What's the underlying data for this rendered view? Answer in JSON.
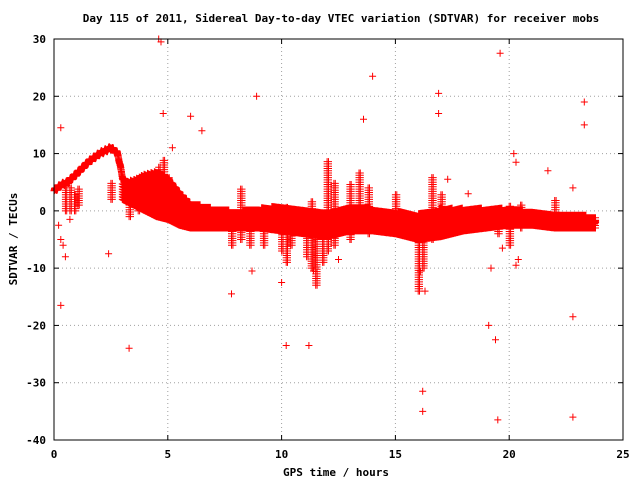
{
  "chart_data": {
    "type": "scatter",
    "title": "Day 115 of 2011, Sidereal Day-to-day VTEC variation (SDTVAR) for receiver mobs",
    "xlabel": "GPS time / hours",
    "ylabel": "SDTVAR / TECUs",
    "xlim": [
      0,
      25
    ],
    "ylim": [
      -40,
      30
    ],
    "xticks": [
      0,
      5,
      10,
      15,
      20,
      25
    ],
    "yticks": [
      -40,
      -30,
      -20,
      -10,
      0,
      10,
      20,
      30
    ],
    "xtick_labels": [
      "0",
      "5",
      "10",
      "15",
      "20",
      "25"
    ],
    "ytick_labels": [
      "-40",
      "-30",
      "-20",
      "-10",
      "0",
      "10",
      "20",
      "30"
    ],
    "grid": true,
    "marker": "+",
    "color": "#ff0000",
    "main_curve": {
      "x": [
        0.0,
        0.3,
        0.6,
        1.0,
        1.5,
        2.0,
        2.5,
        2.8,
        3.0,
        3.3,
        3.6,
        4.0,
        4.5,
        5.0,
        5.5,
        6.0,
        7.0,
        8.0,
        9.0,
        10.0,
        11.0,
        12.0,
        13.0,
        14.0,
        15.0,
        16.0,
        17.0,
        18.0,
        19.0,
        20.0,
        21.0,
        22.0,
        23.0,
        23.8
      ],
      "y": [
        3.5,
        4.5,
        5.0,
        6.5,
        8.5,
        10.0,
        11.0,
        10.0,
        6.0,
        3.0,
        3.5,
        4.0,
        3.5,
        2.0,
        0.0,
        -1.0,
        -1.5,
        -1.5,
        -1.0,
        -1.5,
        -2.0,
        -2.5,
        -1.5,
        -1.0,
        -1.5,
        -2.5,
        -2.0,
        -1.5,
        -1.5,
        -1.0,
        -1.0,
        -1.5,
        -1.5,
        -2.0
      ]
    },
    "band": {
      "x": [
        3.0,
        3.5,
        4.0,
        4.5,
        5.0,
        5.5,
        6.0,
        7.0,
        8.0,
        9.0,
        10.0,
        11.0,
        12.0,
        13.0,
        14.0,
        15.0,
        16.0,
        17.0,
        18.0,
        19.0,
        20.0,
        21.0,
        22.0,
        23.0,
        23.8
      ],
      "upper": [
        5.0,
        5.5,
        6.5,
        7.0,
        6.0,
        3.5,
        1.5,
        0.5,
        0.0,
        0.5,
        1.0,
        0.5,
        0.0,
        1.0,
        0.5,
        0.0,
        -0.5,
        0.5,
        0.5,
        0.5,
        0.5,
        0.0,
        -0.5,
        -0.5,
        -1.0
      ],
      "lower": [
        2.0,
        1.0,
        0.0,
        -1.0,
        -1.5,
        -2.5,
        -3.0,
        -3.0,
        -3.0,
        -3.0,
        -3.5,
        -4.0,
        -4.5,
        -3.5,
        -3.5,
        -4.0,
        -5.0,
        -4.5,
        -3.5,
        -3.0,
        -2.5,
        -2.5,
        -3.0,
        -3.0,
        -3.0
      ]
    },
    "spikes": [
      {
        "x": 0.5,
        "y_low": 0,
        "y_high": 5
      },
      {
        "x": 0.7,
        "y_low": 0,
        "y_high": 4
      },
      {
        "x": 0.9,
        "y_low": 0,
        "y_high": 3
      },
      {
        "x": 1.05,
        "y_low": 1,
        "y_high": 4
      },
      {
        "x": 2.5,
        "y_low": 2,
        "y_high": 5
      },
      {
        "x": 3.3,
        "y_low": -1,
        "y_high": 4
      },
      {
        "x": 3.7,
        "y_low": 0,
        "y_high": 6
      },
      {
        "x": 4.6,
        "y_low": 0,
        "y_high": 8
      },
      {
        "x": 4.8,
        "y_low": 0,
        "y_high": 9
      },
      {
        "x": 5.0,
        "y_low": -1,
        "y_high": 6
      },
      {
        "x": 7.8,
        "y_low": -6,
        "y_high": -1
      },
      {
        "x": 8.2,
        "y_low": -5,
        "y_high": 4
      },
      {
        "x": 8.6,
        "y_low": -6,
        "y_high": -1
      },
      {
        "x": 9.2,
        "y_low": -6,
        "y_high": -2
      },
      {
        "x": 10.0,
        "y_low": -7,
        "y_high": 0
      },
      {
        "x": 10.2,
        "y_low": -9,
        "y_high": 1
      },
      {
        "x": 10.4,
        "y_low": -6,
        "y_high": 0
      },
      {
        "x": 11.1,
        "y_low": -8,
        "y_high": 0
      },
      {
        "x": 11.3,
        "y_low": -10,
        "y_high": 2
      },
      {
        "x": 11.5,
        "y_low": -13,
        "y_high": 0
      },
      {
        "x": 11.8,
        "y_low": -9,
        "y_high": -1
      },
      {
        "x": 12.0,
        "y_low": -7,
        "y_high": 9
      },
      {
        "x": 12.3,
        "y_low": -6,
        "y_high": 5
      },
      {
        "x": 13.0,
        "y_low": -5,
        "y_high": 5
      },
      {
        "x": 13.4,
        "y_low": -3,
        "y_high": 7
      },
      {
        "x": 13.8,
        "y_low": -4,
        "y_high": 4
      },
      {
        "x": 15.0,
        "y_low": -4,
        "y_high": 3
      },
      {
        "x": 16.0,
        "y_low": -14,
        "y_high": -4
      },
      {
        "x": 16.2,
        "y_low": -10,
        "y_high": -3
      },
      {
        "x": 16.6,
        "y_low": -5,
        "y_high": 6
      },
      {
        "x": 17.0,
        "y_low": -4,
        "y_high": 3
      },
      {
        "x": 19.5,
        "y_low": -4,
        "y_high": 0
      },
      {
        "x": 20.0,
        "y_low": -6,
        "y_high": 1
      },
      {
        "x": 20.5,
        "y_low": -3,
        "y_high": 1
      },
      {
        "x": 22.0,
        "y_low": -3,
        "y_high": 2
      }
    ],
    "outliers": {
      "x": [
        0.3,
        0.3,
        0.5,
        0.4,
        0.2,
        0.3,
        0.7,
        2.4,
        3.3,
        4.7,
        4.8,
        5.2,
        6.0,
        6.5,
        7.8,
        8.9,
        8.7,
        10.0,
        10.2,
        11.2,
        11.4,
        12.5,
        13.6,
        14.0,
        13.5,
        16.2,
        16.2,
        16.3,
        16.1,
        16.9,
        16.9,
        19.1,
        19.2,
        19.4,
        19.5,
        19.6,
        19.7,
        20.2,
        20.4,
        20.3,
        20.3,
        21.7,
        22.8,
        22.8,
        22.8,
        23.3,
        23.3,
        4.6,
        17.3,
        18.2
      ],
      "y": [
        14.5,
        -16.5,
        -8.0,
        -6.0,
        -2.5,
        -5.0,
        -1.5,
        -7.5,
        -24.0,
        29.5,
        17.0,
        11.0,
        16.5,
        14.0,
        -14.5,
        20.0,
        -10.5,
        -12.5,
        -23.5,
        -23.5,
        -10.5,
        -8.5,
        16.0,
        23.5,
        -3.0,
        -31.5,
        -35.0,
        -14.0,
        -10.5,
        20.5,
        17.0,
        -20.0,
        -10.0,
        -22.5,
        -36.5,
        27.5,
        -6.5,
        10.0,
        -8.5,
        -9.5,
        8.5,
        7.0,
        -18.5,
        -36.0,
        4.0,
        19.0,
        15.0,
        30.0,
        5.5,
        3.0
      ]
    }
  }
}
